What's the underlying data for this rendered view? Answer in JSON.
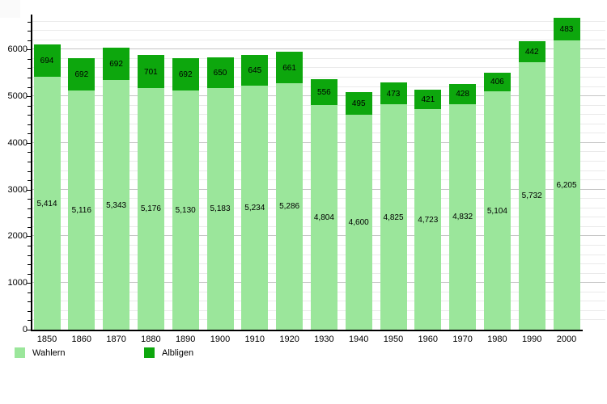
{
  "chart_data": {
    "type": "bar",
    "stacked": true,
    "title": "",
    "xlabel": "",
    "ylabel": "",
    "categories": [
      "1850",
      "1860",
      "1870",
      "1880",
      "1890",
      "1900",
      "1910",
      "1920",
      "1930",
      "1940",
      "1950",
      "1960",
      "1970",
      "1980",
      "1990",
      "2000"
    ],
    "series": [
      {
        "name": "Wahlern",
        "color": "#9be69b",
        "values": [
          5414,
          5116,
          5343,
          5176,
          5130,
          5183,
          5234,
          5286,
          4804,
          4600,
          4825,
          4723,
          4832,
          5104,
          5732,
          6205
        ],
        "labels": [
          "5,414",
          "5,116",
          "5,343",
          "5,176",
          "5,130",
          "5,183",
          "5,234",
          "5,286",
          "4,804",
          "4,600",
          "4,825",
          "4,723",
          "4,832",
          "5,104",
          "5,732",
          "6,205"
        ]
      },
      {
        "name": "Albligen",
        "color": "#0da70d",
        "values": [
          694,
          692,
          692,
          701,
          692,
          650,
          645,
          661,
          556,
          495,
          473,
          421,
          428,
          406,
          442,
          483
        ],
        "labels": [
          "694",
          "692",
          "692",
          "701",
          "692",
          "650",
          "645",
          "661",
          "556",
          "495",
          "473",
          "421",
          "428",
          "406",
          "442",
          "483"
        ]
      }
    ],
    "ylim": [
      0,
      6750
    ],
    "yticks": [
      0,
      1000,
      2000,
      3000,
      4000,
      5000,
      6000
    ],
    "ytick_labels": [
      "0",
      "1000",
      "2000",
      "3000",
      "4000",
      "5000",
      "6000"
    ],
    "grid": {
      "major_increment": 1000,
      "minor_increment": 200,
      "major_color": "#c6c6c6",
      "minor_color": "#eaeaea"
    },
    "legend_position": "bottom-left"
  },
  "legend": {
    "items": [
      {
        "label": "Wahlern",
        "color": "#9be69b"
      },
      {
        "label": "Albligen",
        "color": "#0da70d"
      }
    ]
  }
}
